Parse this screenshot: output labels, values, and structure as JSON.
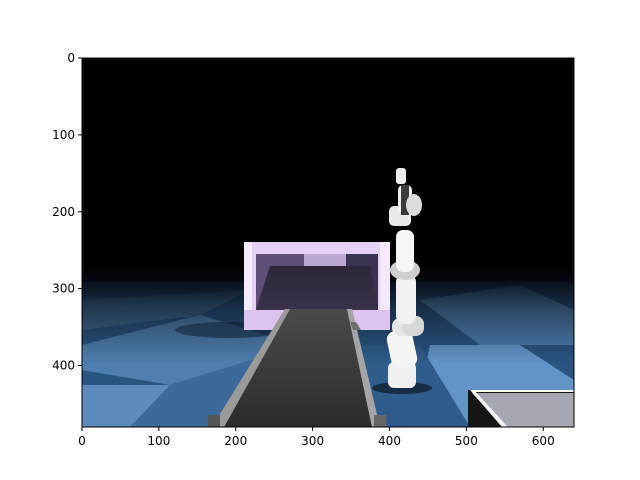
{
  "figure": {
    "x_ticks": [
      "0",
      "100",
      "200",
      "300",
      "400",
      "500",
      "600"
    ],
    "y_ticks": [
      "0",
      "100",
      "200",
      "300",
      "400"
    ],
    "x_tick_values": [
      0,
      100,
      200,
      300,
      400,
      500,
      600
    ],
    "y_tick_values": [
      0,
      100,
      200,
      300,
      400
    ],
    "image_extent": {
      "width": 640,
      "height": 480
    }
  },
  "scene": {
    "objects": [
      "black-sky",
      "checkered-blue-floor",
      "lilac-bin",
      "conveyor-belt",
      "robot-arm",
      "gray-table"
    ],
    "colors": {
      "background": "#000000",
      "floor_light": "#5a86b8",
      "floor_dark": "#22486f",
      "bin": "#e6d1f6",
      "belt": "#3a3a3a",
      "robot": "#f2f2f2",
      "table": "#a7a7b2"
    }
  }
}
